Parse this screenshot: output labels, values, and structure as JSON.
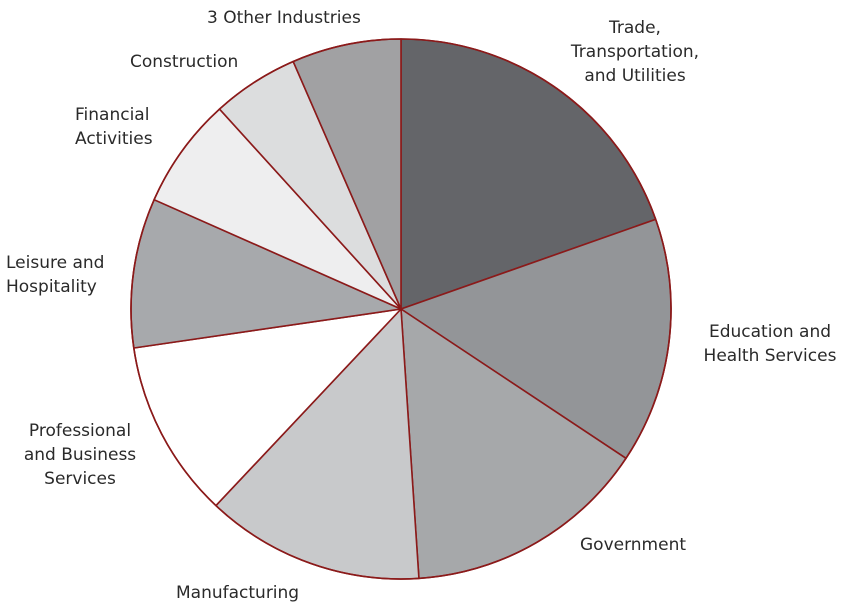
{
  "chart_data": {
    "type": "pie",
    "title": "",
    "start_angle_deg": 0,
    "direction": "clockwise",
    "slice_border_color": "#8b1a1a",
    "slices": [
      {
        "label_lines": [
          "Trade,",
          "Transportation,",
          "and Utilities"
        ],
        "value": 20.4,
        "color": "#646569"
      },
      {
        "label_lines": [
          "Education and",
          "Health Services"
        ],
        "value": 15.3,
        "color": "#939598"
      },
      {
        "label_lines": [
          "Government"
        ],
        "value": 15.2,
        "color": "#a6a8aa"
      },
      {
        "label_lines": [
          "Manufacturing"
        ],
        "value": 13.6,
        "color": "#c8c9cb"
      },
      {
        "label_lines": [
          "Professional",
          "and Business",
          "Services"
        ],
        "value": 11.1,
        "color": "#ffffff"
      },
      {
        "label_lines": [
          "Leisure and",
          "Hospitality"
        ],
        "value": 9.3,
        "color": "#a7a9ac"
      },
      {
        "label_lines": [
          "Financial",
          "Activities"
        ],
        "value": 6.9,
        "color": "#eeeeef"
      },
      {
        "label_lines": [
          "Construction"
        ],
        "value": 5.4,
        "color": "#dcddde"
      },
      {
        "label_lines": [
          "3 Other Industries"
        ],
        "value": 6.8,
        "color": "#a1a1a3"
      }
    ]
  }
}
